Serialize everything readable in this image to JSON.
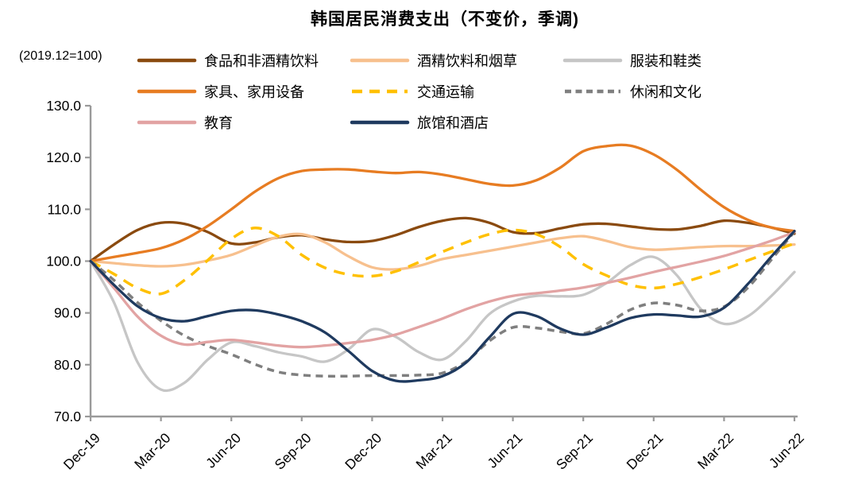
{
  "chart": {
    "title": "韩国居民消费支出（不变价，季调)",
    "unit_label": "(2019.12=100)"
  },
  "chart_data": {
    "type": "line",
    "title": "韩国居民消费支出（不变价，季调)",
    "subtitle": "(2019.12=100)",
    "x_tick_labels": [
      "Dec-19",
      "Mar-20",
      "Jun-20",
      "Sep-20",
      "Dec-20",
      "Mar-21",
      "Jun-21",
      "Sep-21",
      "Dec-21",
      "Mar-22",
      "Jun-22"
    ],
    "months_per_tick": 3,
    "ylim": [
      70,
      130
    ],
    "ytick_step": 10,
    "grid": false,
    "legend_position": "top",
    "legend_rows": [
      [
        0,
        1,
        2
      ],
      [
        3,
        4,
        5
      ],
      [
        6,
        7
      ]
    ],
    "axis_color": "#9a9a9a",
    "series": [
      {
        "key": "food",
        "name": "食品和非酒精饮料",
        "color": "#8a4a0f",
        "style": "solid",
        "values": [
          100,
          103.2,
          106,
          107.4,
          107.2,
          105.6,
          103.4,
          103.6,
          104.6,
          105,
          104.2,
          103.7,
          103.9,
          105,
          106.6,
          107.8,
          108.3,
          107.4,
          105.6,
          105.4,
          106.3,
          107.1,
          107.2,
          106.7,
          106.2,
          106.1,
          106.8,
          107.8,
          107.4,
          106.5,
          105.3
        ]
      },
      {
        "key": "alcohol-tobacco",
        "name": "酒精饮料和烟草",
        "color": "#f7c08e",
        "style": "solid",
        "values": [
          100,
          99.6,
          99.2,
          99,
          99.3,
          100.1,
          101.2,
          103,
          104.7,
          105.2,
          103.6,
          100.9,
          98.8,
          98.4,
          99.1,
          100.4,
          101.2,
          102,
          102.8,
          103.6,
          104.4,
          104.8,
          103.9,
          102.7,
          102.2,
          102.4,
          102.7,
          102.9,
          102.9,
          103,
          103.2
        ]
      },
      {
        "key": "clothing-footwear",
        "name": "服装和鞋类",
        "color": "#c6c6c6",
        "style": "solid",
        "values": [
          100,
          92,
          80.5,
          75.2,
          76.5,
          81,
          84.3,
          83.6,
          82.4,
          81.6,
          80.6,
          83,
          86.8,
          85.4,
          82.4,
          81,
          84.6,
          89.8,
          92.2,
          93.3,
          93.2,
          93.5,
          95.8,
          99.2,
          100.8,
          97.2,
          90.8,
          87.9,
          89.3,
          93.2,
          97.9
        ]
      },
      {
        "key": "furniture-equipment",
        "name": "家具、家用设备",
        "color": "#e77c22",
        "style": "solid",
        "values": [
          100,
          100.8,
          101.6,
          102.5,
          104.2,
          106.8,
          110,
          113.4,
          116,
          117.4,
          117.7,
          117.7,
          117.3,
          117,
          117.2,
          116.7,
          115.8,
          114.9,
          114.6,
          115.6,
          118,
          121.2,
          122.2,
          122.3,
          120.6,
          117.6,
          113.8,
          110.4,
          108,
          106.5,
          105.8
        ]
      },
      {
        "key": "transport",
        "name": "交通运输",
        "color": "#ffc000",
        "style": "dashed",
        "values": [
          100,
          97.5,
          94.8,
          93.7,
          96.3,
          100.2,
          104.3,
          106.4,
          104.8,
          101.2,
          98.7,
          97.4,
          97.1,
          98,
          99.8,
          101.8,
          103.6,
          105.2,
          106,
          105.2,
          102.8,
          99.4,
          97.2,
          95.4,
          94.8,
          95.6,
          96.9,
          98.4,
          100.1,
          101.8,
          103.4
        ]
      },
      {
        "key": "leisure-culture",
        "name": "休闲和文化",
        "color": "#7f7f7f",
        "style": "dashed",
        "values": [
          100,
          96.3,
          92,
          88.5,
          85.6,
          83.6,
          82,
          80.1,
          78.6,
          78,
          77.8,
          77.8,
          77.9,
          77.9,
          78,
          78.4,
          80.6,
          84.6,
          87.2,
          87.1,
          86.4,
          86,
          87.9,
          90.6,
          91.9,
          91.5,
          90.4,
          91.2,
          94.8,
          100.2,
          105.7
        ]
      },
      {
        "key": "education",
        "name": "教育",
        "color": "#e2a3a3",
        "style": "solid",
        "values": [
          100,
          94.8,
          89.3,
          85.6,
          83.9,
          84.4,
          84.8,
          84.3,
          83.7,
          83.4,
          83.7,
          84.2,
          84.8,
          85.8,
          87.3,
          88.9,
          90.7,
          92.2,
          93.3,
          93.8,
          94.3,
          94.9,
          95.8,
          96.8,
          97.9,
          98.9,
          99.9,
          101,
          102.4,
          103.9,
          105.6
        ]
      },
      {
        "key": "hotels-restaurants",
        "name": "旅馆和酒店",
        "color": "#1f3a5f",
        "style": "solid",
        "values": [
          100,
          95.4,
          91.3,
          89,
          88.4,
          89.4,
          90.4,
          90.5,
          89.7,
          88.4,
          86.2,
          82.6,
          78.8,
          76.9,
          77,
          77.8,
          80.4,
          85.3,
          89.8,
          89.4,
          87,
          85.8,
          87.2,
          89,
          89.7,
          89.5,
          89.3,
          91,
          95.5,
          100.8,
          105.8
        ]
      }
    ]
  }
}
